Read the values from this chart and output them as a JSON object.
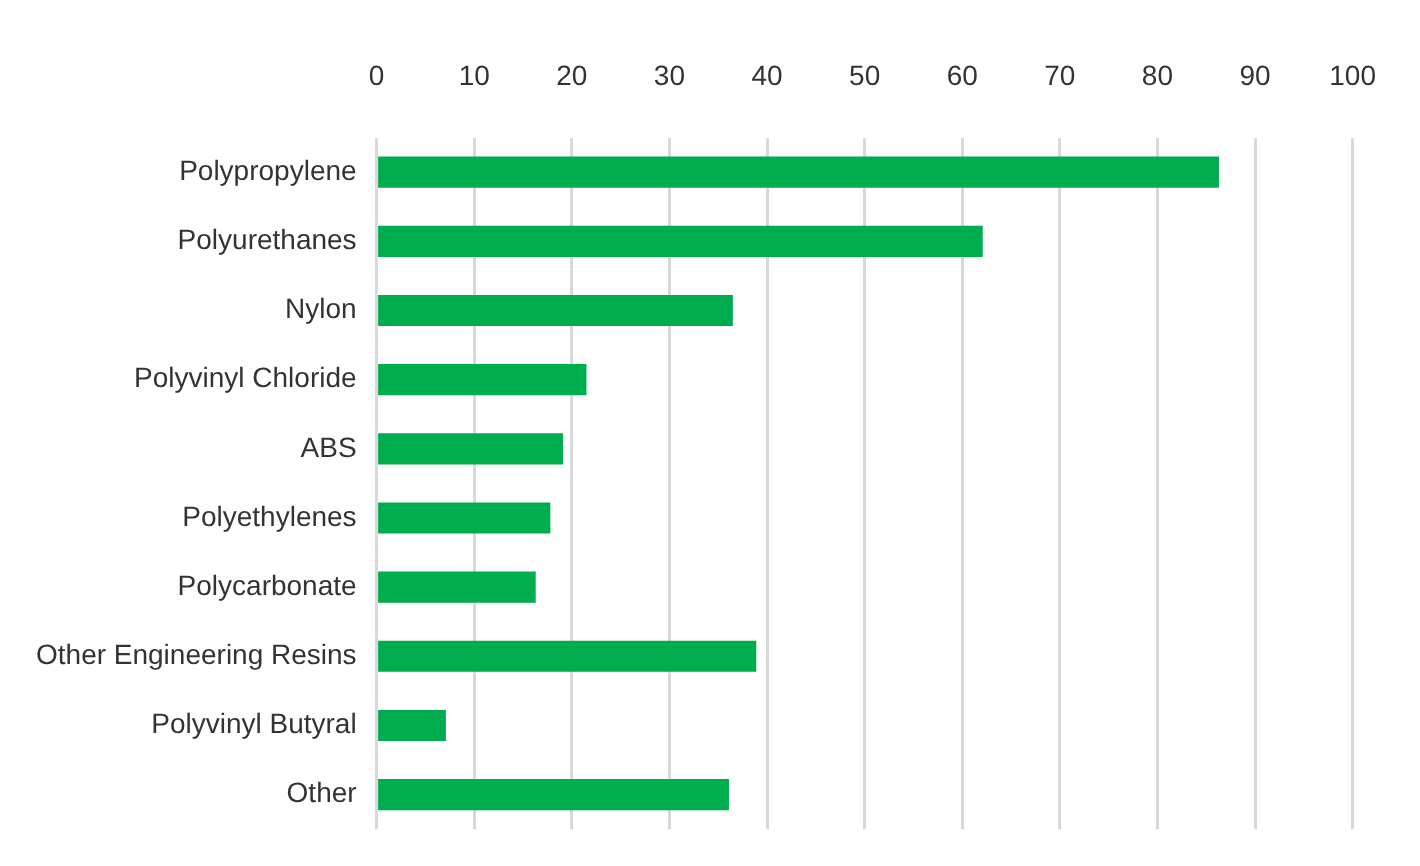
{
  "chart_data": {
    "type": "bar",
    "orientation": "horizontal",
    "categories": [
      "Polypropylene",
      "Polyurethanes",
      "Nylon",
      "Polyvinyl Chloride",
      "ABS",
      "Polyethylenes",
      "Polycarbonate",
      "Other Engineering Resins",
      "Polyvinyl Butyral",
      "Other"
    ],
    "values": [
      86.3,
      62.1,
      36.5,
      21.5,
      19.1,
      17.8,
      16.3,
      38.9,
      7.1,
      36.1
    ],
    "color": "#00ad4e",
    "xlim": [
      0,
      100
    ],
    "xticks": [
      0,
      10,
      20,
      30,
      40,
      50,
      60,
      70,
      80,
      90,
      100
    ],
    "grid": "x",
    "legend": false
  }
}
